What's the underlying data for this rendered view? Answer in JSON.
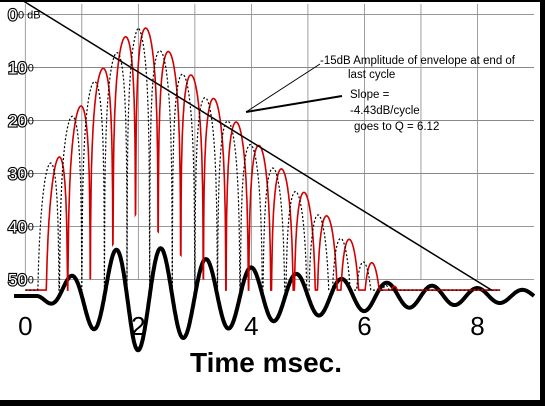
{
  "chart_data": {
    "type": "line",
    "xlabel": "Time msec.",
    "x_ticks": [
      "0",
      "2",
      "4",
      "6",
      "8"
    ],
    "xlim": [
      -0.2,
      9.0
    ],
    "y_ticks": [
      {
        "overlay": "0",
        "underlay": "0 dB"
      },
      {
        "overlay": "10",
        "underlay": "-10"
      },
      {
        "overlay": "20",
        "underlay": "-20"
      },
      {
        "overlay": "30",
        "underlay": "-30"
      },
      {
        "overlay": "40",
        "underlay": "-40"
      },
      {
        "overlay": "50",
        "underlay": "-50"
      }
    ],
    "ylim": [
      -55,
      2
    ],
    "grid": true,
    "series": [
      {
        "color": "#d00000",
        "cycle_ms": 0.4,
        "decay_db_per_cycle": 4.43,
        "start_ms": 0.35,
        "peak_ms": 2.0,
        "peak_db": -1.0
      },
      {
        "color": "#000000",
        "cycle_ms": 0.4,
        "decay_db_per_cycle": 4.43,
        "start_ms": 0.2,
        "peak_ms": 2.0,
        "peak_db": -2.5
      }
    ],
    "envelope_line": {
      "x": [
        -0.1,
        8.25
      ],
      "y": [
        3,
        -52
      ]
    },
    "annotations": [
      {
        "lines": [
          "-15dB Amplitude of envelope at end of",
          "last cycle"
        ]
      },
      {
        "lines": [
          "Slope =",
          "-4.43dB/cycle",
          "goes to Q = 6.12"
        ]
      }
    ],
    "waveform": {
      "color": "#000000",
      "period_ms": 0.8,
      "decay_per_ms": 0.32
    }
  }
}
